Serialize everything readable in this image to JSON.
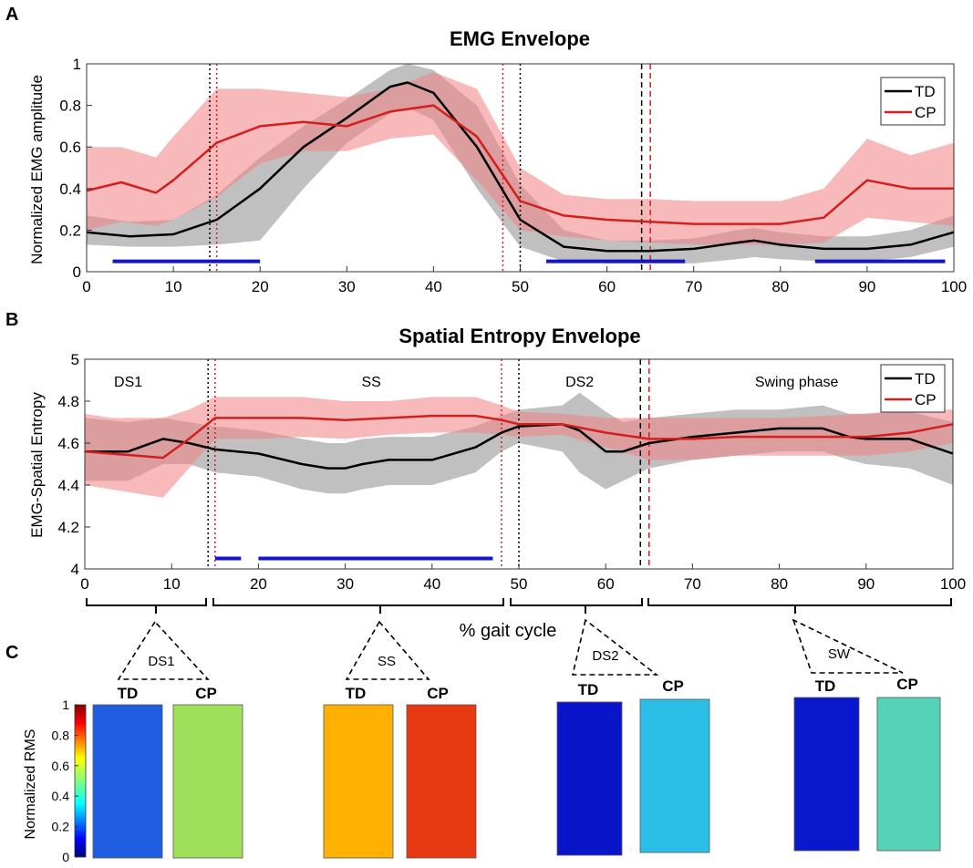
{
  "chart_data": [
    {
      "panel": "A",
      "type": "line",
      "title": "EMG Envelope",
      "xlabel": "",
      "ylabel": "Normalized EMG amplitude",
      "xlim": [
        0,
        100
      ],
      "ylim": [
        0,
        1
      ],
      "xticks": [
        0,
        10,
        20,
        30,
        40,
        50,
        60,
        70,
        80,
        90,
        100
      ],
      "yticks": [
        0,
        0.2,
        0.4,
        0.6,
        0.8,
        1
      ],
      "ytick_labels": [
        "0",
        "0.2",
        "0.4",
        "0.6",
        "0.8",
        "1"
      ],
      "grid": false,
      "legend": "top-right",
      "series": [
        {
          "name": "TD",
          "color": "#000000",
          "x": [
            0,
            5,
            10,
            15,
            20,
            25,
            30,
            35,
            37,
            40,
            45,
            50,
            55,
            60,
            65,
            70,
            75,
            77,
            80,
            85,
            90,
            95,
            100
          ],
          "values": [
            0.19,
            0.17,
            0.18,
            0.25,
            0.4,
            0.6,
            0.74,
            0.89,
            0.91,
            0.86,
            0.6,
            0.25,
            0.12,
            0.1,
            0.1,
            0.11,
            0.14,
            0.15,
            0.13,
            0.11,
            0.11,
            0.13,
            0.19
          ],
          "band_upper": [
            0.27,
            0.24,
            0.25,
            0.37,
            0.55,
            0.7,
            0.83,
            0.97,
            1.0,
            0.97,
            0.8,
            0.42,
            0.2,
            0.15,
            0.15,
            0.16,
            0.2,
            0.21,
            0.19,
            0.17,
            0.17,
            0.2,
            0.27
          ],
          "band_lower": [
            0.13,
            0.12,
            0.12,
            0.13,
            0.15,
            0.4,
            0.62,
            0.76,
            0.79,
            0.73,
            0.4,
            0.12,
            0.05,
            0.04,
            0.04,
            0.04,
            0.06,
            0.07,
            0.06,
            0.05,
            0.05,
            0.07,
            0.12
          ],
          "band_color": "#8c8c8c"
        },
        {
          "name": "CP",
          "color": "#d21f1f",
          "x": [
            0,
            4,
            8,
            10,
            15,
            20,
            25,
            30,
            35,
            40,
            45,
            50,
            55,
            60,
            65,
            70,
            75,
            80,
            85,
            90,
            95,
            100
          ],
          "values": [
            0.39,
            0.43,
            0.38,
            0.44,
            0.62,
            0.7,
            0.72,
            0.7,
            0.77,
            0.8,
            0.65,
            0.34,
            0.27,
            0.25,
            0.24,
            0.23,
            0.23,
            0.23,
            0.26,
            0.44,
            0.4,
            0.4
          ],
          "band_upper": [
            0.6,
            0.6,
            0.55,
            0.65,
            0.88,
            0.88,
            0.86,
            0.84,
            0.88,
            0.96,
            0.88,
            0.5,
            0.37,
            0.35,
            0.35,
            0.34,
            0.34,
            0.34,
            0.4,
            0.64,
            0.56,
            0.62
          ],
          "band_lower": [
            0.2,
            0.24,
            0.22,
            0.25,
            0.36,
            0.52,
            0.58,
            0.58,
            0.64,
            0.66,
            0.44,
            0.2,
            0.17,
            0.15,
            0.14,
            0.13,
            0.13,
            0.13,
            0.14,
            0.26,
            0.24,
            0.22
          ],
          "band_color": "#f08080"
        }
      ],
      "vlines": [
        {
          "x": 14.2,
          "color": "#000000",
          "style": "dotted"
        },
        {
          "x": 15,
          "color": "#d21f1f",
          "style": "dotted"
        },
        {
          "x": 48,
          "color": "#d21f1f",
          "style": "dotted"
        },
        {
          "x": 50,
          "color": "#000000",
          "style": "dotted"
        },
        {
          "x": 64,
          "color": "#000000",
          "style": "dashed"
        },
        {
          "x": 65,
          "color": "#d21f1f",
          "style": "dashed"
        }
      ],
      "sig_bars": [
        {
          "from": 3,
          "to": 20,
          "y": 0.05
        },
        {
          "from": 53,
          "to": 69,
          "y": 0.05
        },
        {
          "from": 84,
          "to": 99,
          "y": 0.05
        }
      ]
    },
    {
      "panel": "B",
      "type": "line",
      "title": "Spatial Entropy Envelope",
      "xlabel": "% gait cycle",
      "ylabel": "EMG-Spatial Entropy",
      "xlim": [
        0,
        100
      ],
      "ylim": [
        4,
        5
      ],
      "xticks": [
        0,
        10,
        20,
        30,
        40,
        50,
        60,
        70,
        80,
        90,
        100
      ],
      "yticks": [
        4,
        4.2,
        4.4,
        4.6,
        4.8,
        5
      ],
      "ytick_labels": [
        "4",
        "4.2",
        "4.4",
        "4.6",
        "4.8",
        "5"
      ],
      "grid": false,
      "legend": "top-right",
      "phase_labels": [
        {
          "text": "DS1",
          "x": 5
        },
        {
          "text": "SS",
          "x": 33
        },
        {
          "text": "DS2",
          "x": 57
        },
        {
          "text": "Swing phase",
          "x": 82
        }
      ],
      "series": [
        {
          "name": "TD",
          "color": "#000000",
          "x": [
            0,
            5,
            9,
            12,
            15,
            20,
            25,
            28,
            30,
            32,
            35,
            40,
            45,
            48,
            50,
            55,
            57,
            60,
            62,
            65,
            70,
            75,
            80,
            85,
            88,
            90,
            95,
            100
          ],
          "values": [
            4.56,
            4.56,
            4.62,
            4.6,
            4.57,
            4.55,
            4.5,
            4.48,
            4.48,
            4.5,
            4.52,
            4.52,
            4.58,
            4.65,
            4.68,
            4.69,
            4.66,
            4.56,
            4.56,
            4.6,
            4.63,
            4.65,
            4.67,
            4.67,
            4.63,
            4.62,
            4.62,
            4.55
          ],
          "band_upper": [
            4.72,
            4.7,
            4.72,
            4.7,
            4.68,
            4.66,
            4.62,
            4.6,
            4.6,
            4.62,
            4.63,
            4.63,
            4.68,
            4.73,
            4.76,
            4.78,
            4.84,
            4.75,
            4.7,
            4.72,
            4.74,
            4.76,
            4.76,
            4.78,
            4.74,
            4.74,
            4.75,
            4.7
          ],
          "band_lower": [
            4.42,
            4.42,
            4.5,
            4.5,
            4.46,
            4.44,
            4.38,
            4.36,
            4.36,
            4.38,
            4.4,
            4.4,
            4.46,
            4.56,
            4.6,
            4.56,
            4.46,
            4.38,
            4.42,
            4.48,
            4.52,
            4.54,
            4.56,
            4.56,
            4.52,
            4.5,
            4.48,
            4.4
          ],
          "band_color": "#8c8c8c"
        },
        {
          "name": "CP",
          "color": "#d21f1f",
          "x": [
            0,
            3,
            6,
            9,
            12,
            15,
            20,
            25,
            30,
            35,
            40,
            45,
            48,
            50,
            55,
            60,
            65,
            70,
            75,
            80,
            85,
            90,
            95,
            100
          ],
          "values": [
            4.56,
            4.55,
            4.54,
            4.53,
            4.62,
            4.72,
            4.72,
            4.72,
            4.71,
            4.72,
            4.73,
            4.73,
            4.71,
            4.69,
            4.69,
            4.65,
            4.62,
            4.62,
            4.63,
            4.63,
            4.63,
            4.63,
            4.65,
            4.69
          ],
          "band_upper": [
            4.74,
            4.72,
            4.72,
            4.72,
            4.76,
            4.82,
            4.82,
            4.82,
            4.8,
            4.8,
            4.82,
            4.82,
            4.78,
            4.75,
            4.74,
            4.72,
            4.72,
            4.72,
            4.72,
            4.72,
            4.73,
            4.74,
            4.76,
            4.76
          ],
          "band_lower": [
            4.4,
            4.38,
            4.36,
            4.34,
            4.48,
            4.62,
            4.62,
            4.63,
            4.62,
            4.64,
            4.65,
            4.65,
            4.64,
            4.63,
            4.64,
            4.58,
            4.52,
            4.52,
            4.54,
            4.54,
            4.54,
            4.54,
            4.56,
            4.6
          ],
          "band_color": "#f08080"
        }
      ],
      "vlines": [
        {
          "x": 14.2,
          "color": "#000000",
          "style": "dotted"
        },
        {
          "x": 15,
          "color": "#d21f1f",
          "style": "dotted"
        },
        {
          "x": 48,
          "color": "#d21f1f",
          "style": "dotted"
        },
        {
          "x": 50,
          "color": "#000000",
          "style": "dotted"
        },
        {
          "x": 64,
          "color": "#000000",
          "style": "dashed"
        },
        {
          "x": 65,
          "color": "#d21f1f",
          "style": "dashed"
        }
      ],
      "sig_bars": [
        {
          "from": 15,
          "to": 18,
          "y": 4.05
        },
        {
          "from": 20,
          "to": 47,
          "y": 4.05
        }
      ]
    },
    {
      "panel": "C",
      "type": "heatmap",
      "colorbar_label": "Normalized RMS",
      "colorbar_range": [
        0,
        1
      ],
      "colorbar_ticks": [
        0,
        0.2,
        0.4,
        0.6,
        0.8,
        1
      ],
      "colorbar_tick_labels": [
        "0",
        "0.2",
        "0.4",
        "0.6",
        "0.8",
        "1"
      ],
      "colormap": "jet",
      "phases": [
        {
          "label": "DS1",
          "td_label": "TD",
          "cp_label": "CP",
          "td_level": 0.2,
          "cp_level": 0.55,
          "td_color": "#1f5de0",
          "cp_color": "#9fe05a"
        },
        {
          "label": "SS",
          "td_label": "TD",
          "cp_label": "CP",
          "td_level": 0.8,
          "cp_level": 0.9,
          "td_color": "#ffb000",
          "cp_color": "#e83a12"
        },
        {
          "label": "DS2",
          "td_label": "TD",
          "cp_label": "CP",
          "td_level": 0.02,
          "cp_level": 0.3,
          "td_color": "#0a14c8",
          "cp_color": "#2bbfe8"
        },
        {
          "label": "SW",
          "td_label": "TD",
          "cp_label": "CP",
          "td_level": 0.04,
          "cp_level": 0.42,
          "td_color": "#0a18cc",
          "cp_color": "#55d2b8"
        }
      ]
    }
  ],
  "panel_labels": [
    "A",
    "B",
    "C"
  ]
}
